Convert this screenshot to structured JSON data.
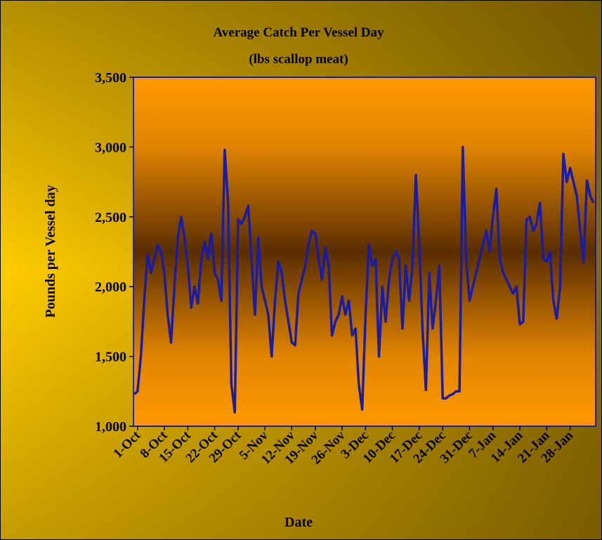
{
  "chart_data": {
    "type": "line",
    "title": "Average Catch Per Vessel Day",
    "subtitle": "(lbs scallop meat)",
    "x_label": "Date",
    "y_label": "Pounds per Vessel day",
    "categories": [
      null,
      "1-Oct",
      null,
      null,
      null,
      null,
      null,
      null,
      null,
      "8-Oct",
      null,
      null,
      null,
      null,
      null,
      null,
      "15-Oct",
      null,
      null,
      null,
      null,
      null,
      null,
      null,
      "22-Oct",
      null,
      null,
      null,
      null,
      null,
      null,
      "29-Oct",
      null,
      null,
      null,
      null,
      null,
      null,
      null,
      "5-Nov",
      null,
      null,
      null,
      null,
      null,
      null,
      null,
      "12-Nov",
      null,
      null,
      null,
      null,
      null,
      null,
      "19-Nov",
      null,
      null,
      null,
      null,
      null,
      null,
      null,
      "26-Nov",
      null,
      null,
      null,
      null,
      null,
      null,
      "3-Dec",
      null,
      null,
      null,
      null,
      null,
      null,
      null,
      "10-Dec",
      null,
      null,
      null,
      null,
      null,
      null,
      null,
      "17-Dec",
      null,
      null,
      null,
      null,
      null,
      null,
      "24-Dec",
      null,
      null,
      null,
      null,
      null,
      null,
      null,
      "31-Dec",
      null,
      null,
      null,
      null,
      null,
      null,
      "7-Jan",
      null,
      null,
      null,
      null,
      null,
      null,
      null,
      "14-Jan",
      null,
      null,
      null,
      null,
      null,
      null,
      null,
      "21-Jan",
      null,
      null,
      null,
      null,
      null,
      null,
      "28-Jan",
      null,
      null,
      null,
      null,
      null,
      null,
      null
    ],
    "series": [
      {
        "name": "Average Catch",
        "color": "#1c1c9e",
        "values": [
          1230,
          1250,
          1500,
          1900,
          2230,
          2100,
          2200,
          2300,
          2250,
          2100,
          1800,
          1600,
          2000,
          2350,
          2500,
          2350,
          2150,
          1850,
          2000,
          1880,
          2200,
          2320,
          2200,
          2380,
          2100,
          2050,
          1900,
          2980,
          2600,
          1300,
          1100,
          2480,
          2450,
          2500,
          2580,
          2200,
          1800,
          2350,
          2000,
          1900,
          1800,
          1500,
          1900,
          2180,
          2100,
          1900,
          1750,
          1600,
          1580,
          1950,
          2050,
          2150,
          2300,
          2400,
          2380,
          2200,
          2050,
          2280,
          2150,
          1650,
          1750,
          1800,
          1930,
          1800,
          1900,
          1650,
          1700,
          1300,
          1120,
          1800,
          2300,
          2150,
          2200,
          1500,
          2000,
          1750,
          2050,
          2200,
          2250,
          2200,
          1700,
          2150,
          1900,
          2150,
          2800,
          2300,
          1700,
          1260,
          2100,
          1700,
          1900,
          2150,
          1200,
          1200,
          1220,
          1230,
          1250,
          1250,
          3000,
          2200,
          1900,
          2000,
          2100,
          2200,
          2300,
          2400,
          2250,
          2500,
          2700,
          2200,
          2100,
          2050,
          2000,
          1950,
          2000,
          1730,
          1750,
          2480,
          2500,
          2400,
          2450,
          2600,
          2200,
          2180,
          2250,
          1900,
          1770,
          2000,
          2950,
          2750,
          2850,
          2750,
          2650,
          2400,
          2170,
          2760,
          2650,
          2600
        ]
      }
    ],
    "ylim": [
      1000,
      3500
    ],
    "yticks": [
      {
        "value": 1000,
        "label": "1,000"
      },
      {
        "value": 1500,
        "label": "1,500"
      },
      {
        "value": 2000,
        "label": "2,000"
      },
      {
        "value": 2500,
        "label": "2,500"
      },
      {
        "value": 3000,
        "label": "3,000"
      },
      {
        "value": 3500,
        "label": "3,500"
      }
    ]
  }
}
